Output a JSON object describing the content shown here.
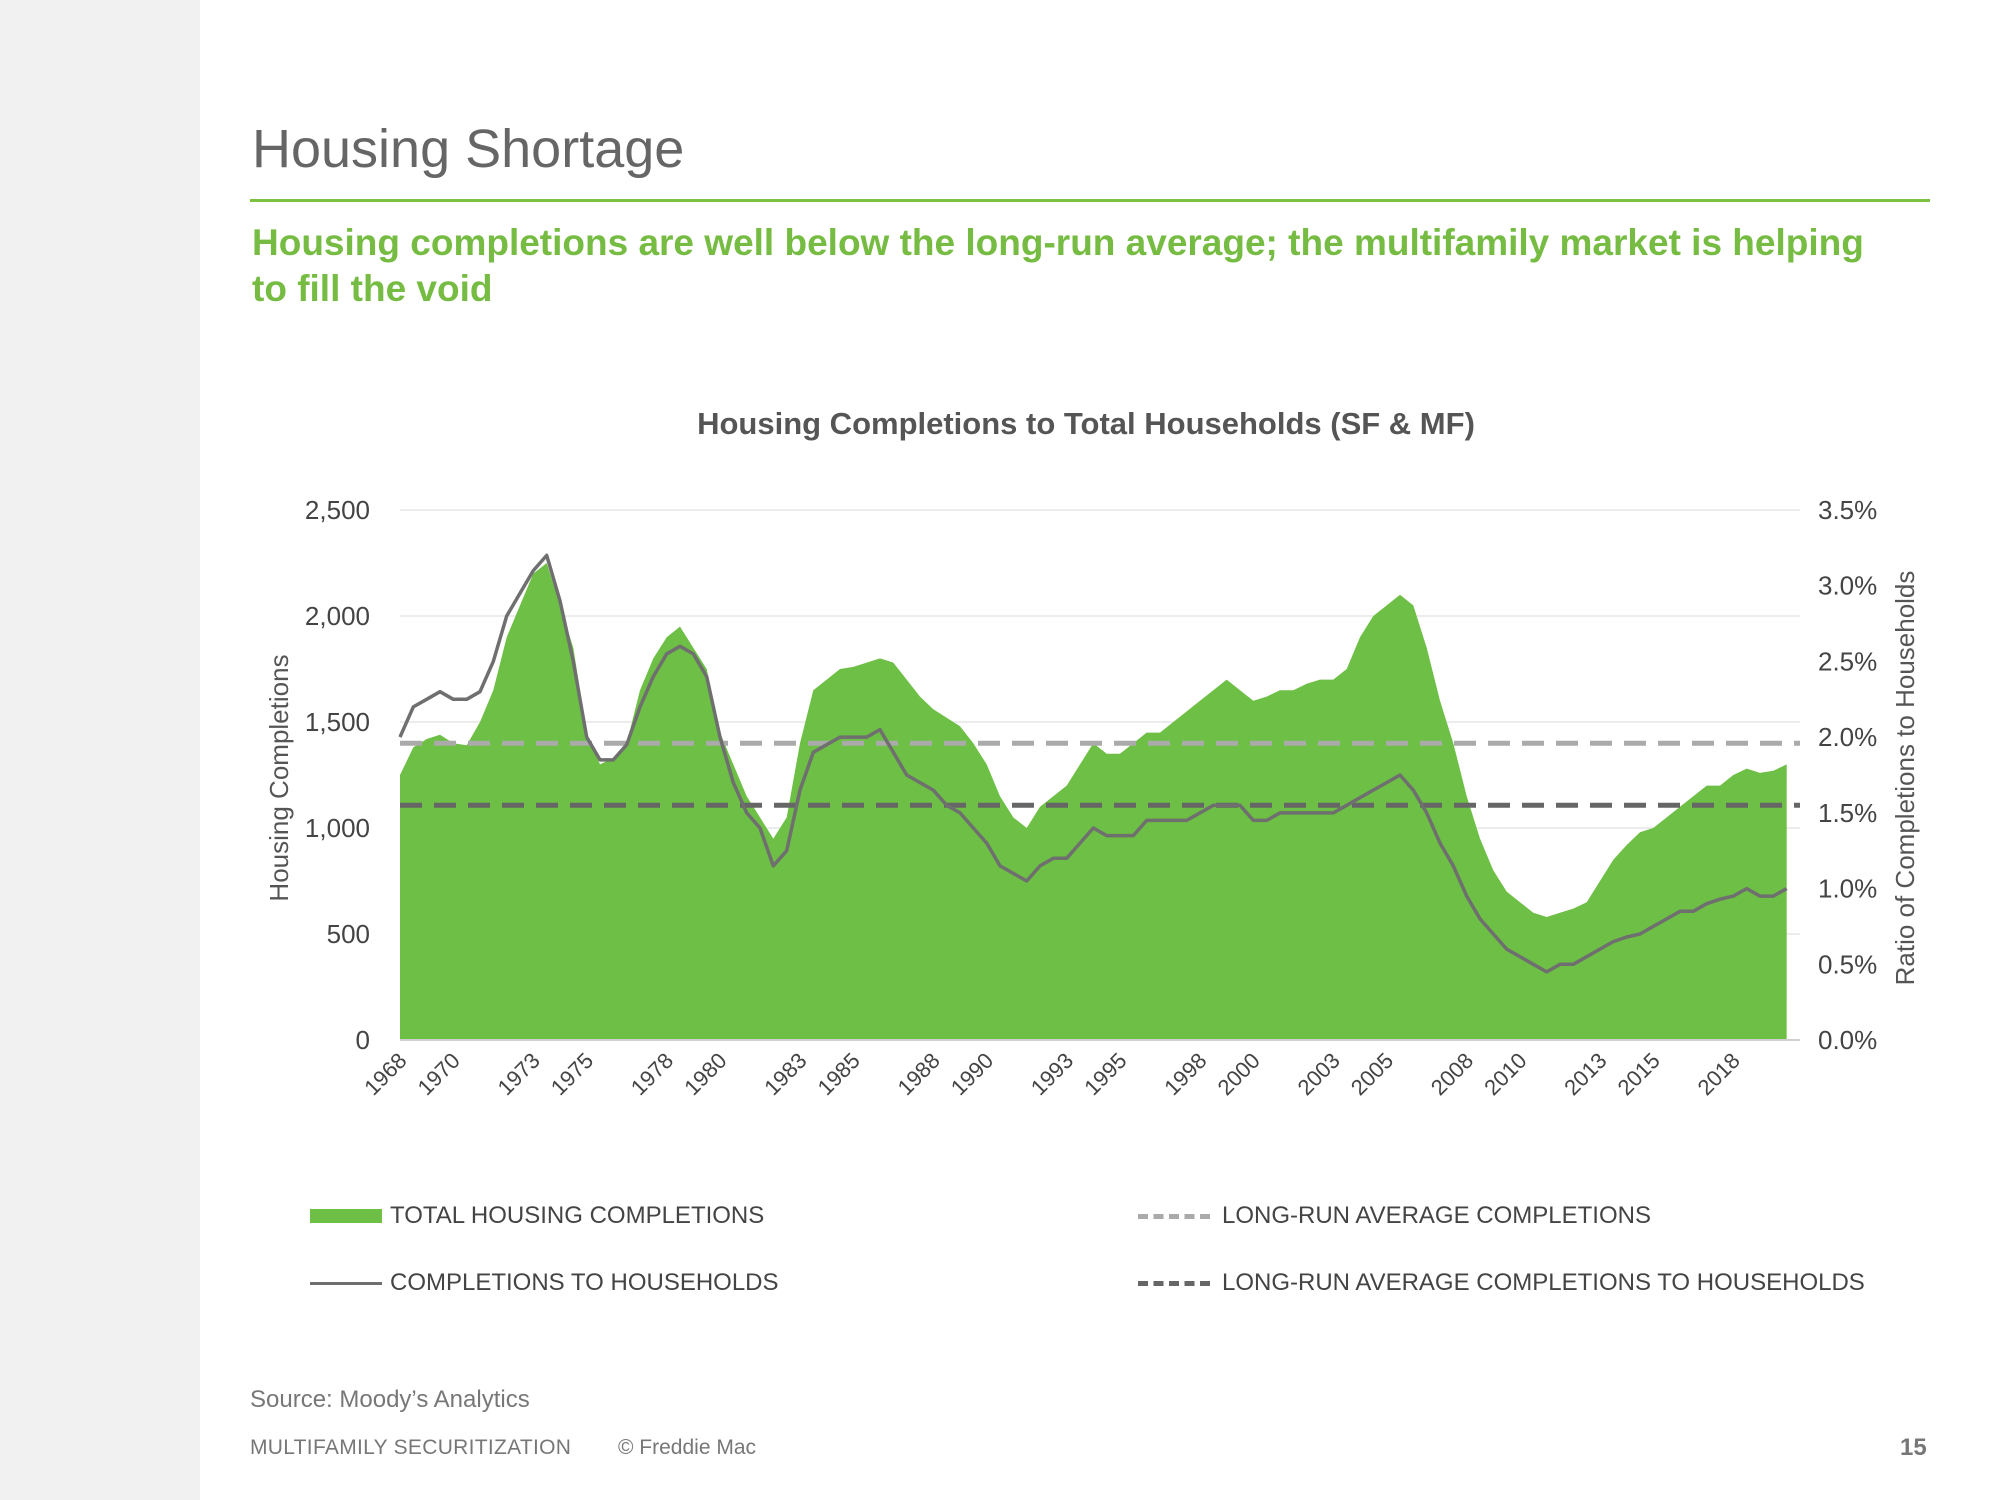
{
  "slide": {
    "title": "Housing Shortage",
    "subtitle": "Housing completions are well below the long-run average; the multifamily market is helping to fill the void",
    "source": "Source: Moody’s Analytics",
    "footer_left": "MULTIFAMILY SECURITIZATION",
    "footer_copy": "© Freddie Mac",
    "page_number": "15"
  },
  "colors": {
    "accent_green": "#7bc142",
    "area_green": "#6dbf45",
    "ratio_line": "#6f6f6f",
    "avg_completions": "#aaaaaa",
    "avg_ratio": "#666666"
  },
  "chart_data": {
    "type": "area",
    "title": "Housing Completions to Total Households (SF & MF)",
    "ylabel": "Housing Completions",
    "y2label": "Ratio of Completions to Households",
    "ylim": [
      0,
      2500
    ],
    "y2lim": [
      0,
      3.5
    ],
    "yticks": [
      "0",
      "500",
      "1,000",
      "1,500",
      "2,000",
      "2,500"
    ],
    "y2ticks": [
      "0.0%",
      "0.5%",
      "1.0%",
      "1.5%",
      "2.0%",
      "2.5%",
      "3.0%",
      "3.5%"
    ],
    "xlim": [
      1968,
      2020.5
    ],
    "xticks": [
      "1968",
      "1970",
      "1973",
      "1975",
      "1978",
      "1980",
      "1983",
      "1985",
      "1988",
      "1990",
      "1993",
      "1995",
      "1998",
      "2000",
      "2003",
      "2005",
      "2008",
      "2010",
      "2013",
      "2015",
      "2018"
    ],
    "grid": true,
    "legend": [
      "TOTAL HOUSING COMPLETIONS",
      "LONG-RUN AVERAGE COMPLETIONS",
      "COMPLETIONS TO HOUSEHOLDS",
      "LONG-RUN AVERAGE COMPLETIONS TO HOUSEHOLDS"
    ],
    "legend_position": "bottom",
    "series": [
      {
        "name": "TOTAL HOUSING COMPLETIONS",
        "type": "area",
        "axis": "left",
        "x": [
          1968,
          1968.5,
          1969,
          1969.5,
          1970,
          1970.5,
          1971,
          1971.5,
          1972,
          1972.5,
          1973,
          1973.5,
          1974,
          1974.5,
          1975,
          1975.5,
          1976,
          1976.5,
          1977,
          1977.5,
          1978,
          1978.5,
          1979,
          1979.5,
          1980,
          1980.5,
          1981,
          1981.5,
          1982,
          1982.5,
          1983,
          1983.5,
          1984,
          1984.5,
          1985,
          1985.5,
          1986,
          1986.5,
          1987,
          1987.5,
          1988,
          1988.5,
          1989,
          1989.5,
          1990,
          1990.5,
          1991,
          1991.5,
          1992,
          1992.5,
          1993,
          1993.5,
          1994,
          1994.5,
          1995,
          1995.5,
          1996,
          1996.5,
          1997,
          1997.5,
          1998,
          1998.5,
          1999,
          1999.5,
          2000,
          2000.5,
          2001,
          2001.5,
          2002,
          2002.5,
          2003,
          2003.5,
          2004,
          2004.5,
          2005,
          2005.5,
          2006,
          2006.5,
          2007,
          2007.5,
          2008,
          2008.5,
          2009,
          2009.5,
          2010,
          2010.5,
          2011,
          2011.5,
          2012,
          2012.5,
          2013,
          2013.5,
          2014,
          2014.5,
          2015,
          2015.5,
          2016,
          2016.5,
          2017,
          2017.5,
          2018,
          2018.5,
          2019,
          2019.5,
          2020
        ],
        "values": [
          1250,
          1380,
          1420,
          1440,
          1400,
          1390,
          1500,
          1650,
          1900,
          2050,
          2200,
          2250,
          2050,
          1850,
          1450,
          1300,
          1330,
          1400,
          1650,
          1800,
          1900,
          1950,
          1850,
          1750,
          1450,
          1300,
          1150,
          1050,
          950,
          1050,
          1400,
          1650,
          1700,
          1750,
          1760,
          1780,
          1800,
          1780,
          1700,
          1620,
          1560,
          1520,
          1480,
          1400,
          1300,
          1150,
          1050,
          1000,
          1100,
          1150,
          1200,
          1300,
          1400,
          1350,
          1350,
          1400,
          1450,
          1450,
          1500,
          1550,
          1600,
          1650,
          1700,
          1650,
          1600,
          1620,
          1650,
          1650,
          1680,
          1700,
          1700,
          1750,
          1900,
          2000,
          2050,
          2100,
          2050,
          1850,
          1600,
          1400,
          1150,
          950,
          800,
          700,
          650,
          600,
          580,
          600,
          620,
          650,
          750,
          850,
          920,
          980,
          1000,
          1050,
          1100,
          1150,
          1200,
          1200,
          1250,
          1280,
          1260,
          1270,
          1300
        ]
      },
      {
        "name": "COMPLETIONS TO HOUSEHOLDS",
        "type": "line",
        "axis": "right",
        "x": [
          1968,
          1968.5,
          1969,
          1969.5,
          1970,
          1970.5,
          1971,
          1971.5,
          1972,
          1972.5,
          1973,
          1973.5,
          1974,
          1974.5,
          1975,
          1975.5,
          1976,
          1976.5,
          1977,
          1977.5,
          1978,
          1978.5,
          1979,
          1979.5,
          1980,
          1980.5,
          1981,
          1981.5,
          1982,
          1982.5,
          1983,
          1983.5,
          1984,
          1984.5,
          1985,
          1985.5,
          1986,
          1986.5,
          1987,
          1987.5,
          1988,
          1988.5,
          1989,
          1989.5,
          1990,
          1990.5,
          1991,
          1991.5,
          1992,
          1992.5,
          1993,
          1993.5,
          1994,
          1994.5,
          1995,
          1995.5,
          1996,
          1996.5,
          1997,
          1997.5,
          1998,
          1998.5,
          1999,
          1999.5,
          2000,
          2000.5,
          2001,
          2001.5,
          2002,
          2002.5,
          2003,
          2003.5,
          2004,
          2004.5,
          2005,
          2005.5,
          2006,
          2006.5,
          2007,
          2007.5,
          2008,
          2008.5,
          2009,
          2009.5,
          2010,
          2010.5,
          2011,
          2011.5,
          2012,
          2012.5,
          2013,
          2013.5,
          2014,
          2014.5,
          2015,
          2015.5,
          2016,
          2016.5,
          2017,
          2017.5,
          2018,
          2018.5,
          2019,
          2019.5,
          2020
        ],
        "values": [
          2.0,
          2.2,
          2.25,
          2.3,
          2.25,
          2.25,
          2.3,
          2.5,
          2.8,
          2.95,
          3.1,
          3.2,
          2.9,
          2.5,
          2.0,
          1.85,
          1.85,
          1.95,
          2.2,
          2.4,
          2.55,
          2.6,
          2.55,
          2.4,
          2.0,
          1.7,
          1.5,
          1.4,
          1.15,
          1.25,
          1.65,
          1.9,
          1.95,
          2.0,
          2.0,
          2.0,
          2.05,
          1.9,
          1.75,
          1.7,
          1.65,
          1.55,
          1.5,
          1.4,
          1.3,
          1.15,
          1.1,
          1.05,
          1.15,
          1.2,
          1.2,
          1.3,
          1.4,
          1.35,
          1.35,
          1.35,
          1.45,
          1.45,
          1.45,
          1.45,
          1.5,
          1.55,
          1.55,
          1.55,
          1.45,
          1.45,
          1.5,
          1.5,
          1.5,
          1.5,
          1.5,
          1.55,
          1.6,
          1.65,
          1.7,
          1.75,
          1.65,
          1.5,
          1.3,
          1.15,
          0.95,
          0.8,
          0.7,
          0.6,
          0.55,
          0.5,
          0.45,
          0.5,
          0.5,
          0.55,
          0.6,
          0.65,
          0.68,
          0.7,
          0.75,
          0.8,
          0.85,
          0.85,
          0.9,
          0.93,
          0.95,
          1.0,
          0.95,
          0.95,
          1.0
        ]
      },
      {
        "name": "LONG-RUN AVERAGE COMPLETIONS",
        "type": "line",
        "axis": "left",
        "style": "dashed",
        "values": [
          1400
        ]
      },
      {
        "name": "LONG-RUN AVERAGE COMPLETIONS TO HOUSEHOLDS",
        "type": "line",
        "axis": "right",
        "style": "dashed",
        "values": [
          1.55
        ]
      }
    ]
  }
}
